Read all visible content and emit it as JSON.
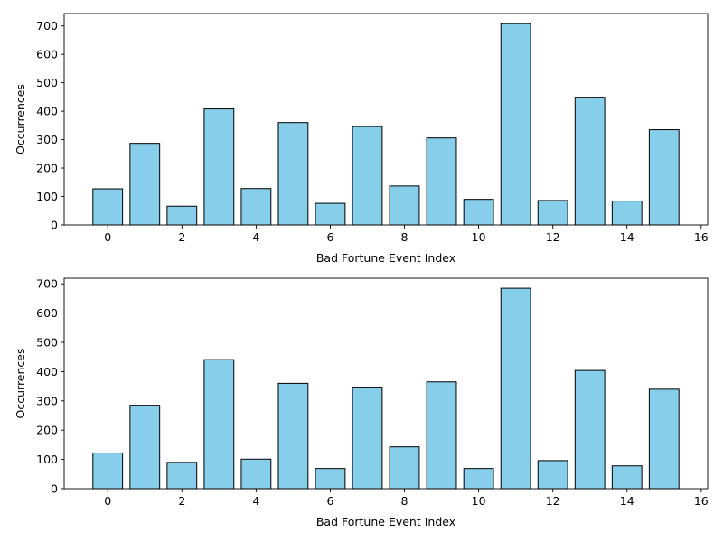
{
  "chart_data": [
    {
      "type": "bar",
      "x": [
        0,
        1,
        2,
        3,
        4,
        5,
        6,
        7,
        8,
        9,
        10,
        11,
        12,
        13,
        14,
        15
      ],
      "values": [
        127,
        287,
        66,
        408,
        128,
        360,
        76,
        346,
        137,
        306,
        90,
        708,
        86,
        449,
        84,
        335
      ],
      "xlabel": "Bad Fortune Event Index",
      "ylabel": "Occurrences",
      "xlim": [
        -1.175,
        16.175
      ],
      "ylim": [
        0,
        743.4
      ],
      "xticks": [
        0,
        2,
        4,
        6,
        8,
        10,
        12,
        14,
        16
      ],
      "yticks": [
        0,
        100,
        200,
        300,
        400,
        500,
        600,
        700
      ],
      "bar_color": "#87ceeb",
      "edge_color": "#000000",
      "grid": false,
      "legend": false
    },
    {
      "type": "bar",
      "x": [
        0,
        1,
        2,
        3,
        4,
        5,
        6,
        7,
        8,
        9,
        10,
        11,
        12,
        13,
        14,
        15
      ],
      "values": [
        122,
        285,
        90,
        441,
        101,
        360,
        69,
        347,
        143,
        365,
        69,
        685,
        96,
        404,
        78,
        340
      ],
      "xlabel": "Bad Fortune Event Index",
      "ylabel": "Occurrences",
      "xlim": [
        -1.175,
        16.175
      ],
      "ylim": [
        0,
        719.25
      ],
      "xticks": [
        0,
        2,
        4,
        6,
        8,
        10,
        12,
        14,
        16
      ],
      "yticks": [
        0,
        100,
        200,
        300,
        400,
        500,
        600,
        700
      ],
      "bar_color": "#87ceeb",
      "edge_color": "#000000",
      "grid": false,
      "legend": false
    }
  ]
}
